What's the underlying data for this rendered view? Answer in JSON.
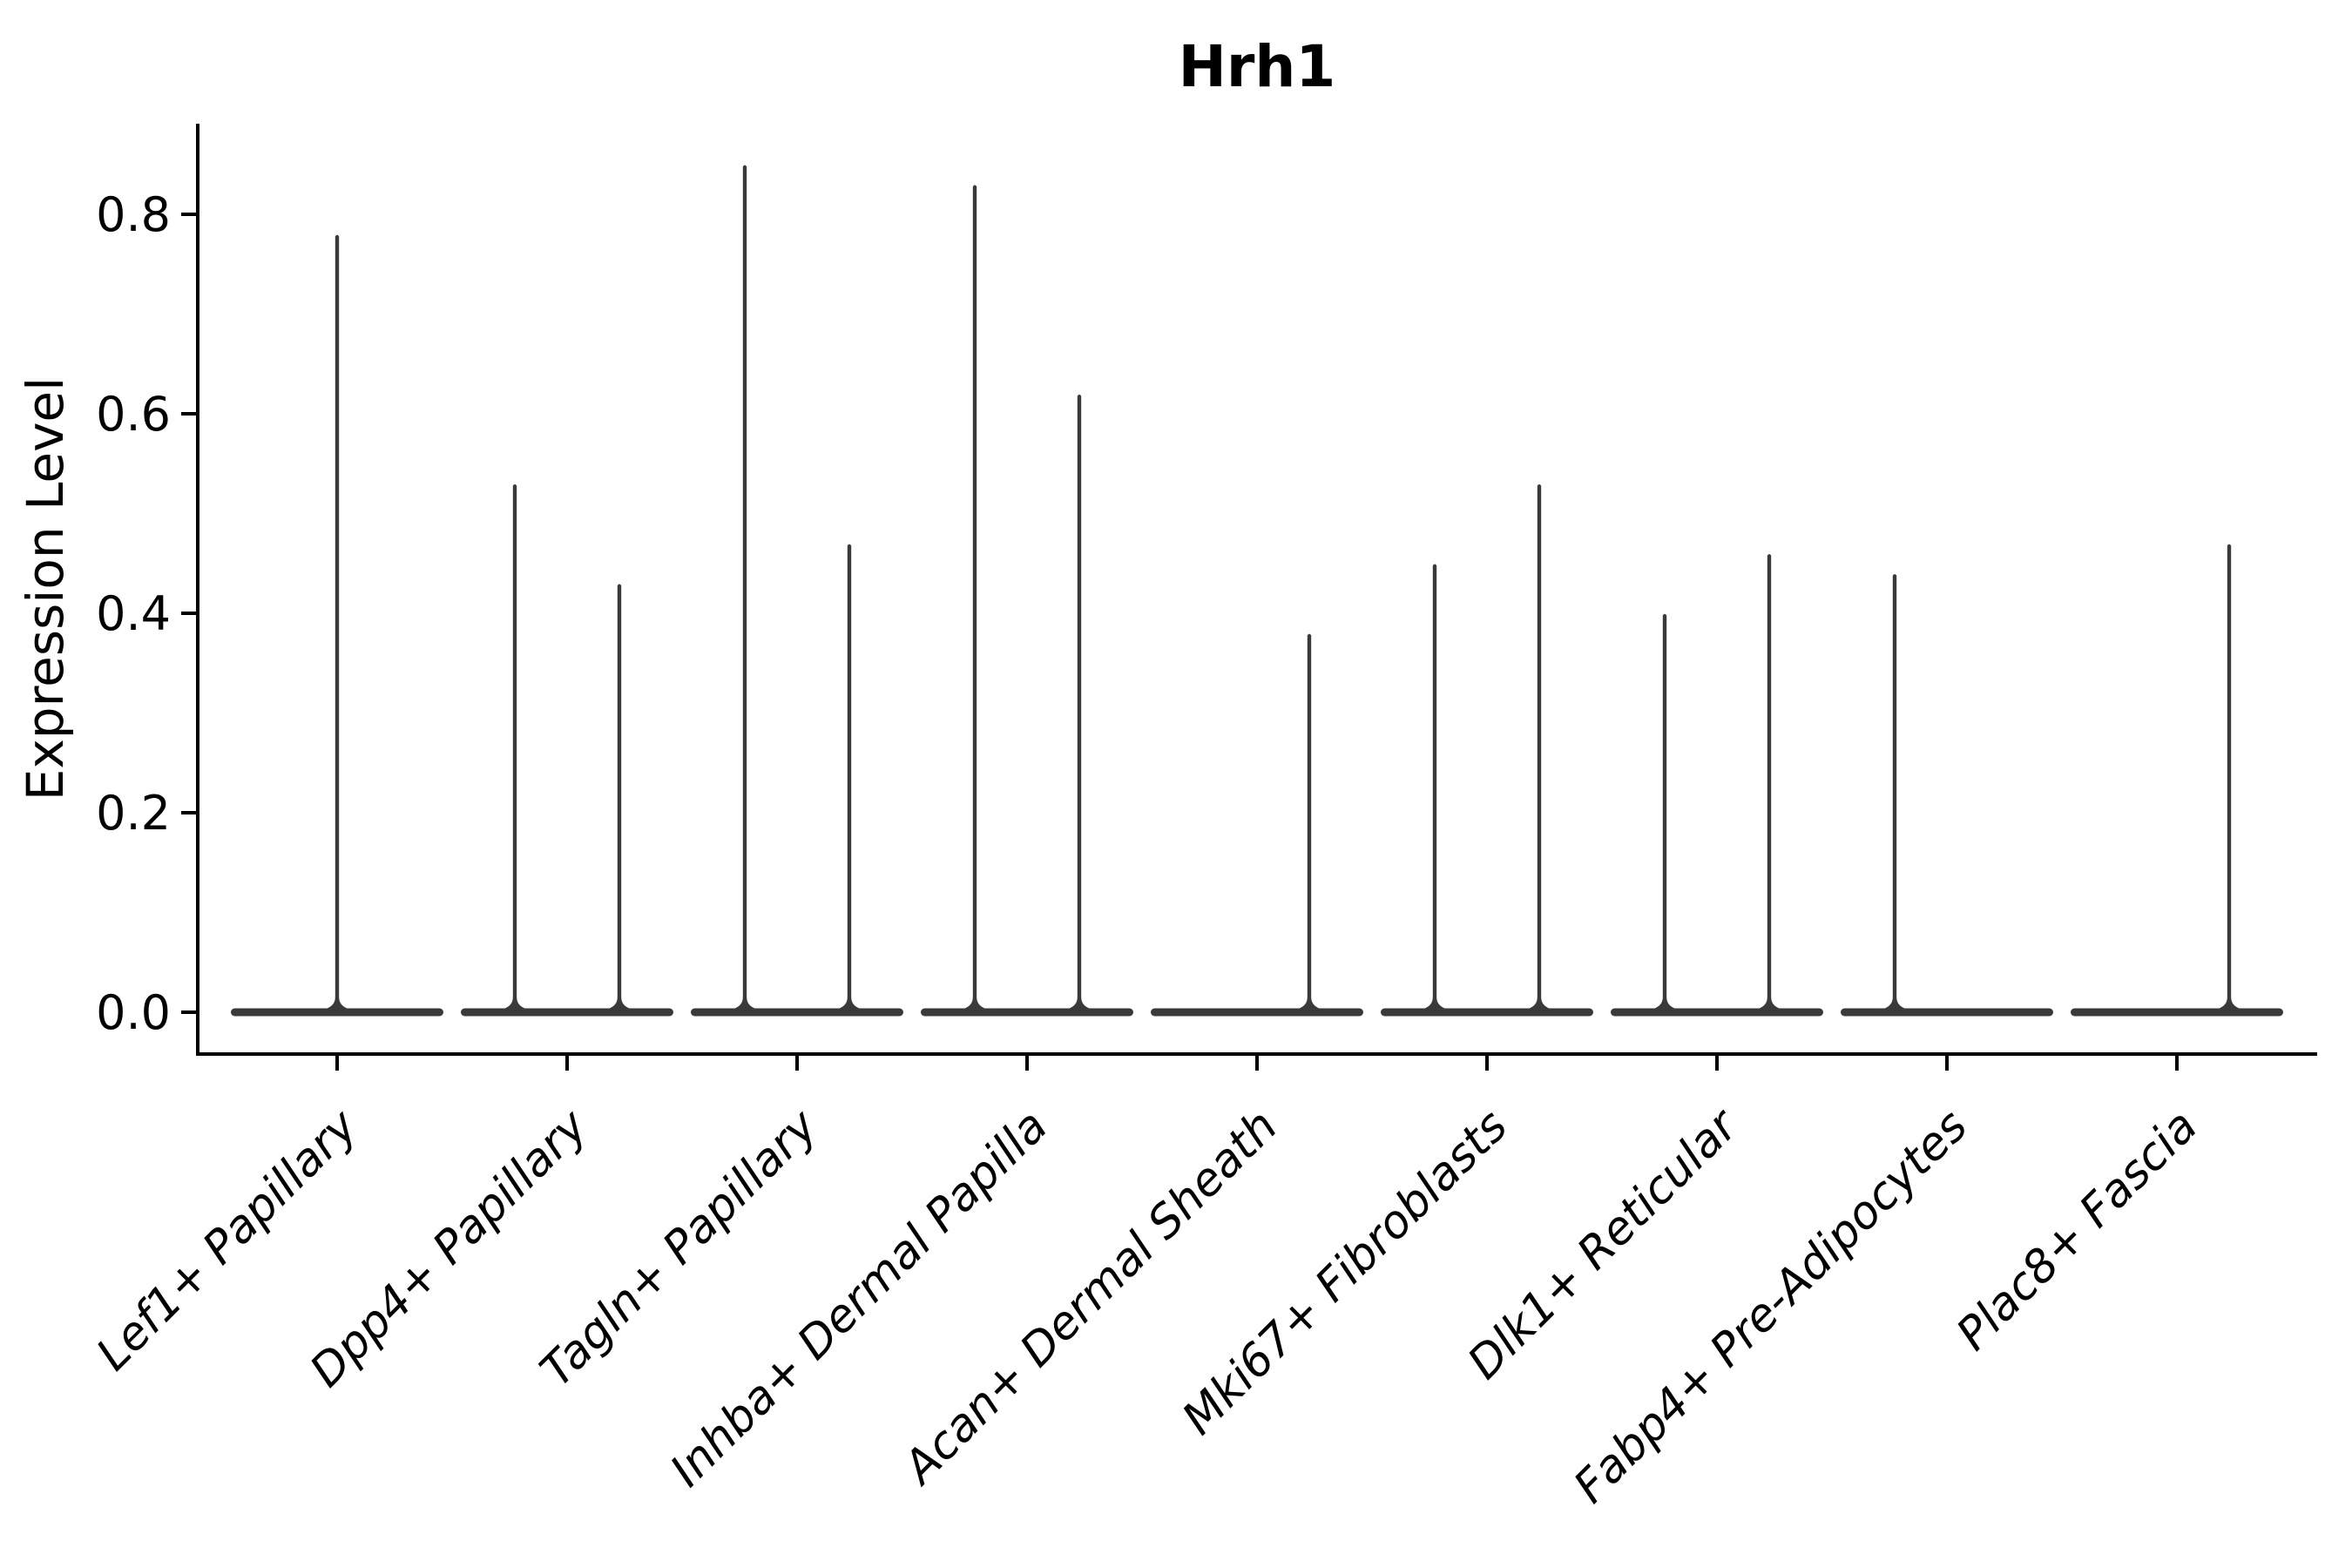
{
  "chart_data": {
    "type": "violin",
    "title": "Hrh1",
    "ylabel": "Expression Level",
    "xlabel": "",
    "ylim": [
      -0.042,
      0.891
    ],
    "grid": false,
    "legend": null,
    "yticks": [
      {
        "value": 0.0,
        "label": "0.0"
      },
      {
        "value": 0.2,
        "label": "0.2"
      },
      {
        "value": 0.4,
        "label": "0.4"
      },
      {
        "value": 0.6,
        "label": "0.6"
      },
      {
        "value": 0.8,
        "label": "0.8"
      }
    ],
    "categories": [
      "Lef1+ Papillary",
      "Dpp4+ Papillary",
      "Tagln+ Papillary",
      "Inhba+ Dermal Papilla",
      "Acan+ Dermal Sheath",
      "Mki67+ Fibroblasts",
      "Dlk1+ Reticular",
      "Fabp4+ Pre-Adipocytes",
      "Plac8+ Fascia"
    ],
    "groups": [
      {
        "label": "Lef1+ Papillary",
        "spikes": [
          {
            "side": "center",
            "max": 0.78
          }
        ]
      },
      {
        "label": "Dpp4+ Papillary",
        "spikes": [
          {
            "side": "left",
            "max": 0.53
          },
          {
            "side": "right",
            "max": 0.43
          }
        ]
      },
      {
        "label": "Tagln+ Papillary",
        "spikes": [
          {
            "side": "left",
            "max": 0.85
          },
          {
            "side": "right",
            "max": 0.47
          }
        ]
      },
      {
        "label": "Inhba+ Dermal Papilla",
        "spikes": [
          {
            "side": "left",
            "max": 0.83
          },
          {
            "side": "right",
            "max": 0.62
          }
        ]
      },
      {
        "label": "Acan+ Dermal Sheath",
        "spikes": [
          {
            "side": "right",
            "max": 0.38
          }
        ]
      },
      {
        "label": "Mki67+ Fibroblasts",
        "spikes": [
          {
            "side": "left",
            "max": 0.45
          },
          {
            "side": "right",
            "max": 0.53
          }
        ]
      },
      {
        "label": "Dlk1+ Reticular",
        "spikes": [
          {
            "side": "left",
            "max": 0.4
          },
          {
            "side": "right",
            "max": 0.46
          }
        ]
      },
      {
        "label": "Fabp4+ Pre-Adipocytes",
        "spikes": [
          {
            "side": "left",
            "max": 0.44
          }
        ]
      },
      {
        "label": "Plac8+ Fascia",
        "spikes": [
          {
            "side": "right",
            "max": 0.47
          }
        ]
      }
    ],
    "colors": {
      "violin": "#3a3a3a",
      "axis": "#000000",
      "background": "#ffffff"
    }
  }
}
